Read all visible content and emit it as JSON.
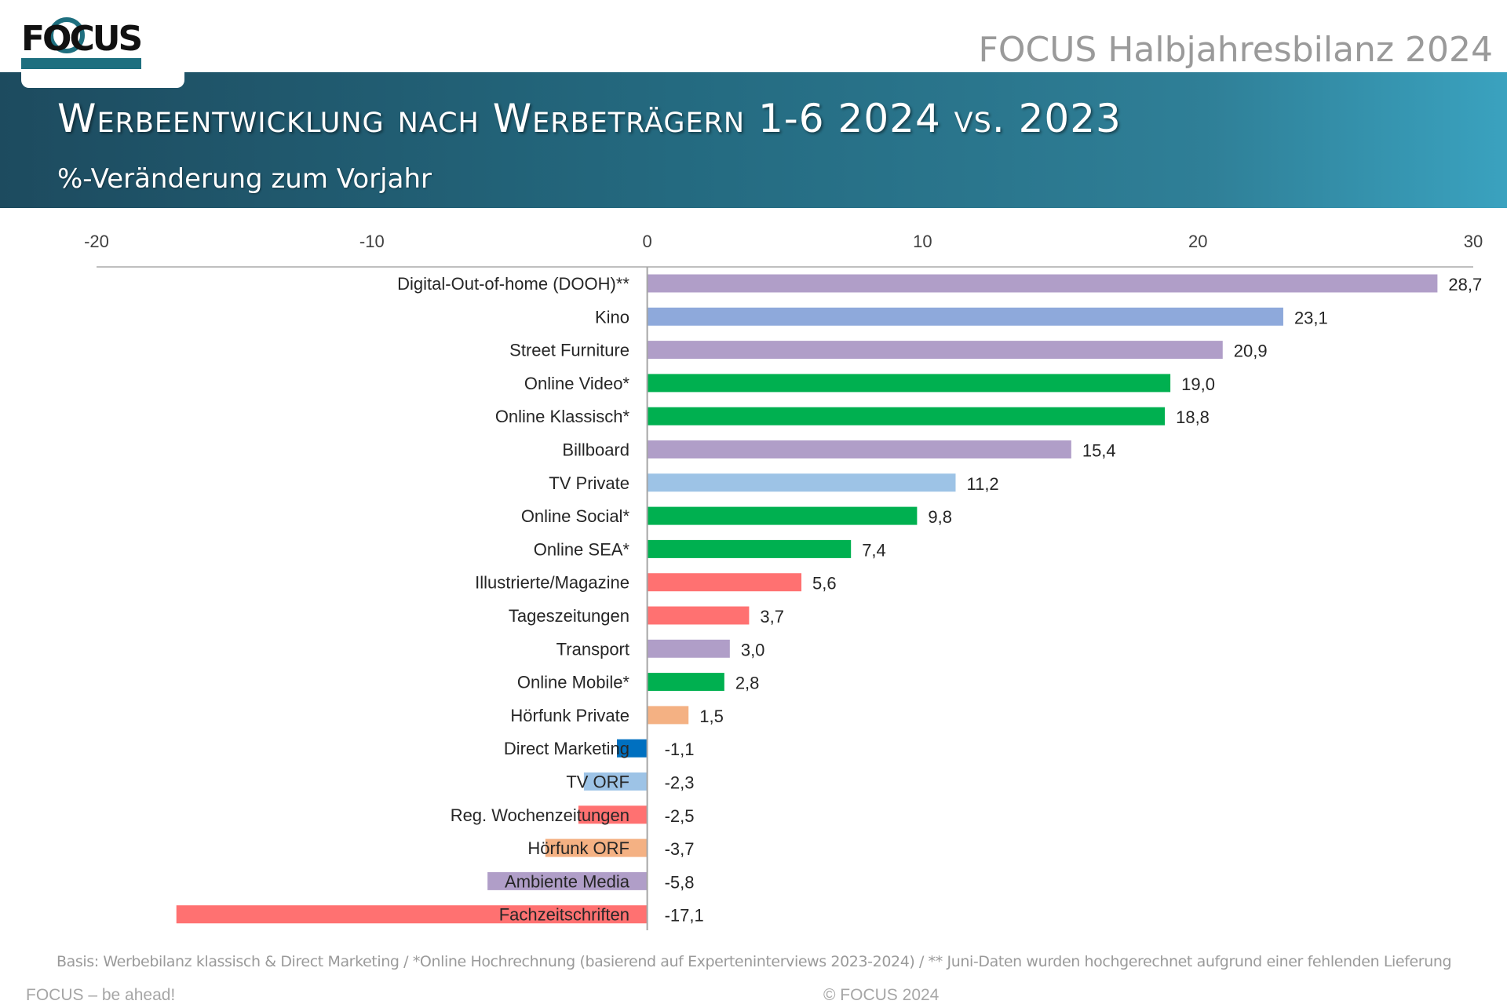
{
  "header": {
    "logo_text": "FOCUS",
    "report_name": "FOCUS Halbjahresbilanz 2024",
    "title": "Werbeentwicklung nach Werbeträgern 1-6 2024 vs. 2023",
    "subtitle": "%-Veränderung zum Vorjahr"
  },
  "chart_data": {
    "type": "bar",
    "orientation": "horizontal",
    "xlim": [
      -20,
      30
    ],
    "x_ticks": [
      "-20",
      "-10",
      "0",
      "10",
      "20",
      "30"
    ],
    "categories": [
      "Digital-Out-of-home (DOOH)**",
      "Kino",
      "Street Furniture",
      "Online Video*",
      "Online Klassisch*",
      "Billboard",
      "TV Private",
      "Online Social*",
      "Online SEA*",
      "Illustrierte/Magazine",
      "Tageszeitungen",
      "Transport",
      "Online Mobile*",
      "Hörfunk Private",
      "Direct Marketing",
      "TV ORF",
      "Reg. Wochenzeitungen",
      "Hörfunk ORF",
      "Ambiente Media",
      "Fachzeitschriften"
    ],
    "values": [
      28.7,
      23.1,
      20.9,
      19.0,
      18.8,
      15.4,
      11.2,
      9.8,
      7.4,
      5.6,
      3.7,
      3.0,
      2.8,
      1.5,
      -1.1,
      -2.3,
      -2.5,
      -3.7,
      -5.8,
      -17.1
    ],
    "value_labels": [
      "28,7",
      "23,1",
      "20,9",
      "19,0",
      "18,8",
      "15,4",
      "11,2",
      "9,8",
      "7,4",
      "5,6",
      "3,7",
      "3,0",
      "2,8",
      "1,5",
      "-1,1",
      "-2,3",
      "-2,5",
      "-3,7",
      "-5,8",
      "-17,1"
    ],
    "colors": [
      "#b09ec8",
      "#8ea9db",
      "#b09ec8",
      "#00b050",
      "#00b050",
      "#b09ec8",
      "#9dc3e6",
      "#00b050",
      "#00b050",
      "#ff7171",
      "#ff7171",
      "#b09ec8",
      "#00b050",
      "#f4b183",
      "#0070c0",
      "#9dc3e6",
      "#ff7171",
      "#f4b183",
      "#b09ec8",
      "#ff7171"
    ],
    "grid": false,
    "legend": "none"
  },
  "footer": {
    "note": "Basis: Werbebilanz klassisch & Direct Marketing / *Online Hochrechnung (basierend auf Experteninterviews 2023-2024) / ** Juni-Daten wurden hochgerechnet aufgrund einer fehlenden Lieferung",
    "tagline": "FOCUS – be ahead!",
    "copyright": "© FOCUS 2024"
  }
}
